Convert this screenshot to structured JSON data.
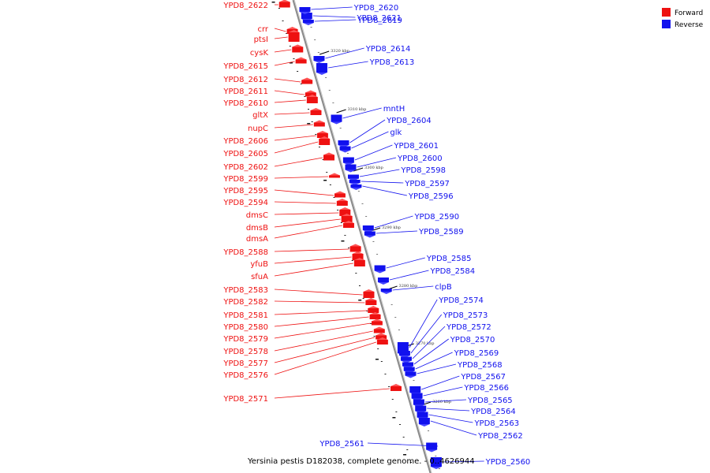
{
  "caption": "Yersinia pestis D182038, complete genome. - 0..4626944",
  "legend": [
    {
      "label": "Forward",
      "color": "#ee1111"
    },
    {
      "label": "Reverse",
      "color": "#1111ee"
    }
  ],
  "colors": {
    "forward": "#ee1111",
    "reverse": "#1111ee",
    "backbone": "#8a8a8a"
  },
  "ticks": [
    "3320 kbp",
    "3310 kbp",
    "3300 kbp",
    "3290 kbp",
    "3280 kbp",
    "3270 kbp",
    "3260 kbp"
  ],
  "forward_genes": [
    "YPD8_2622",
    "crr",
    "ptsI",
    "cysK",
    "YPD8_2615",
    "YPD8_2612",
    "YPD8_2611",
    "YPD8_2610",
    "gltX",
    "nupC",
    "YPD8_2606",
    "YPD8_2605",
    "YPD8_2602",
    "YPD8_2599",
    "YPD8_2595",
    "YPD8_2594",
    "dmsC",
    "dmsB",
    "dmsA",
    "YPD8_2588",
    "yfuB",
    "sfuA",
    "YPD8_2583",
    "YPD8_2582",
    "YPD8_2581",
    "YPD8_2580",
    "YPD8_2579",
    "YPD8_2578",
    "YPD8_2577",
    "YPD8_2576",
    "YPD8_2571"
  ],
  "reverse_genes": [
    "YPD8_2621",
    "YPD8_2620",
    "YPD8_2619",
    "YPD8_2614",
    "YPD8_2613",
    "mntH",
    "YPD8_2604",
    "glk",
    "YPD8_2601",
    "YPD8_2600",
    "YPD8_2598",
    "YPD8_2597",
    "YPD8_2596",
    "YPD8_2590",
    "YPD8_2589",
    "YPD8_2585",
    "YPD8_2584",
    "clpB",
    "YPD8_2574",
    "YPD8_2573",
    "YPD8_2572",
    "YPD8_2570",
    "YPD8_2569",
    "YPD8_2568",
    "YPD8_2567",
    "YPD8_2566",
    "YPD8_2565",
    "YPD8_2564",
    "YPD8_2563",
    "YPD8_2562",
    "YPD8_2561",
    "YPD8_2560"
  ]
}
